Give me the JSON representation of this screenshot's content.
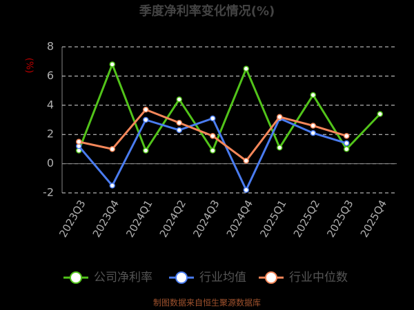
{
  "chart_data": {
    "type": "line",
    "title": "季度净利率变化情况(%)",
    "y_label": "(%)",
    "categories": [
      "2023Q3",
      "2023Q4",
      "2024Q1",
      "2024Q2",
      "2024Q3",
      "2024Q4",
      "2025Q1",
      "2025Q2",
      "2025Q3",
      "2025Q4"
    ],
    "series": [
      {
        "name": "公司净利率",
        "color": "#52c41a",
        "values": [
          0.9,
          6.8,
          0.9,
          4.4,
          0.9,
          6.5,
          1.1,
          4.7,
          1.0,
          3.4
        ]
      },
      {
        "name": "行业均值",
        "color": "#4a7cf0",
        "values": [
          1.2,
          -1.5,
          3.0,
          2.3,
          3.1,
          -1.8,
          3.1,
          2.1,
          1.4,
          null
        ]
      },
      {
        "name": "行业中位数",
        "color": "#f5875a",
        "values": [
          1.5,
          1.0,
          3.7,
          2.8,
          1.9,
          0.2,
          3.2,
          2.6,
          1.9,
          null
        ]
      }
    ],
    "ylim": [
      -2,
      8
    ],
    "yticks": [
      -2,
      0,
      2,
      4,
      6,
      8
    ],
    "grid": true,
    "source": "制图数据来自恒生聚源数据库"
  }
}
